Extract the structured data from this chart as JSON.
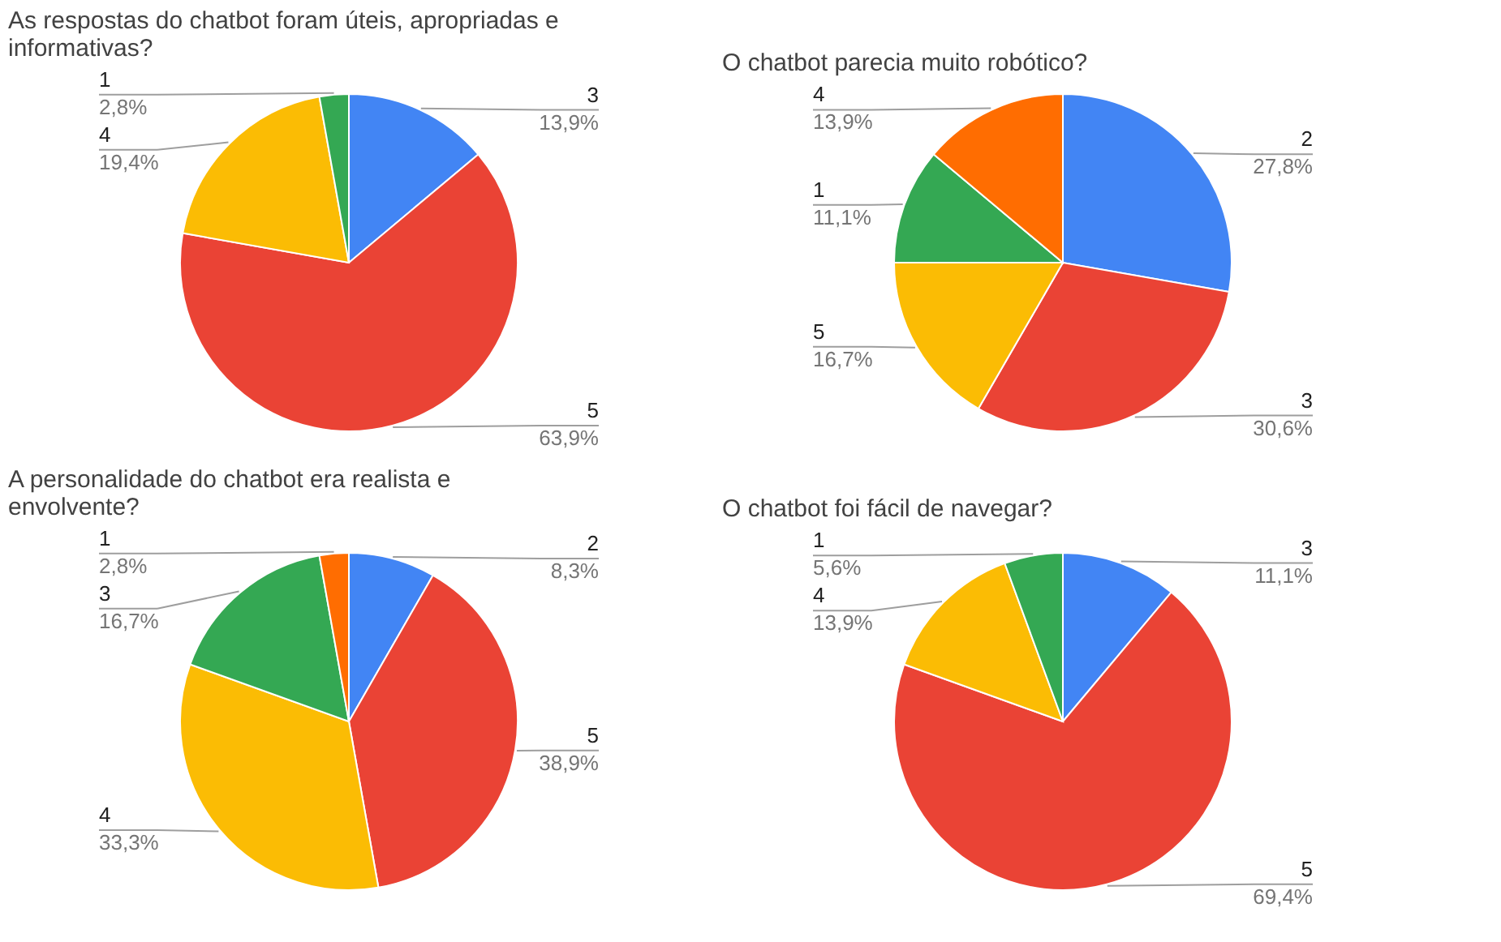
{
  "chart_data": [
    {
      "type": "pie",
      "title": "As respostas do chatbot foram úteis, apropriadas e informativas?",
      "categories": [
        "3",
        "5",
        "4",
        "1"
      ],
      "values": [
        13.9,
        63.9,
        19.4,
        2.8
      ],
      "value_labels": [
        "13,9%",
        "63,9%",
        "19,4%",
        "2,8%"
      ],
      "colors": [
        "#4285f4",
        "#ea4335",
        "#fbbc04",
        "#34a853"
      ]
    },
    {
      "type": "pie",
      "title": "O chatbot parecia muito robótico?",
      "categories": [
        "2",
        "3",
        "5",
        "1",
        "4"
      ],
      "values": [
        27.8,
        30.6,
        16.7,
        11.1,
        13.9
      ],
      "value_labels": [
        "27,8%",
        "30,6%",
        "16,7%",
        "11,1%",
        "13,9%"
      ],
      "colors": [
        "#4285f4",
        "#ea4335",
        "#fbbc04",
        "#34a853",
        "#ff6d01"
      ]
    },
    {
      "type": "pie",
      "title": "A personalidade do chatbot era realista e envolvente?",
      "categories": [
        "2",
        "5",
        "4",
        "3",
        "1"
      ],
      "values": [
        8.3,
        38.9,
        33.3,
        16.7,
        2.8
      ],
      "value_labels": [
        "8,3%",
        "38,9%",
        "33,3%",
        "16,7%",
        "2,8%"
      ],
      "colors": [
        "#4285f4",
        "#ea4335",
        "#fbbc04",
        "#34a853",
        "#ff6d01"
      ]
    },
    {
      "type": "pie",
      "title": "O chatbot foi fácil de navegar?",
      "categories": [
        "3",
        "5",
        "4",
        "1"
      ],
      "values": [
        11.1,
        69.4,
        13.9,
        5.6
      ],
      "value_labels": [
        "11,1%",
        "69,4%",
        "13,9%",
        "5,6%"
      ],
      "colors": [
        "#4285f4",
        "#ea4335",
        "#fbbc04",
        "#34a853"
      ]
    }
  ]
}
